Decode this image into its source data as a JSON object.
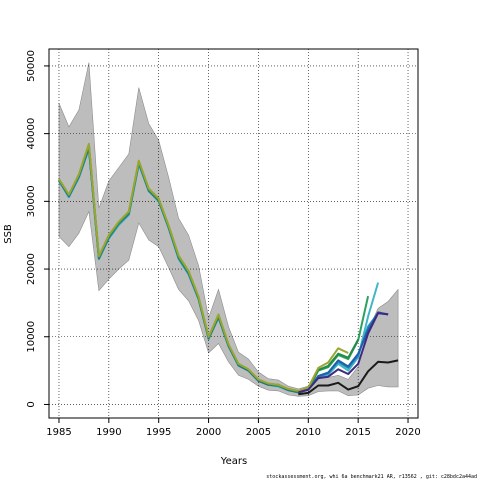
{
  "chart_data": {
    "type": "line",
    "xlabel": "Years",
    "ylabel": "SSB",
    "xlim": [
      1984,
      2021
    ],
    "ylim": [
      -2000,
      52500
    ],
    "x_ticks": [
      1985,
      1990,
      1995,
      2000,
      2005,
      2010,
      2015,
      2020
    ],
    "y_ticks": [
      0,
      10000,
      20000,
      30000,
      40000,
      50000
    ],
    "grid": true,
    "footer": "stockassessment.org, whi 6a benchmark21 AR, r13562 , git: c28bdc2a44ad",
    "band": {
      "x": [
        1985,
        1986,
        1987,
        1988,
        1989,
        1990,
        1991,
        1992,
        1993,
        1994,
        1995,
        1996,
        1997,
        1998,
        1999,
        2000,
        2001,
        2002,
        2003,
        2004,
        2005,
        2006,
        2007,
        2008,
        2009,
        2010,
        2011,
        2012,
        2013,
        2014,
        2015,
        2016,
        2017,
        2018,
        2019
      ],
      "upper": [
        44500,
        41000,
        43500,
        50500,
        29000,
        33000,
        35000,
        37000,
        46800,
        41500,
        39000,
        33500,
        27500,
        25000,
        20500,
        12800,
        17000,
        11500,
        7700,
        6700,
        4800,
        3800,
        3600,
        2700,
        2300,
        2700,
        3800,
        4000,
        4300,
        3700,
        5600,
        11000,
        14200,
        15200,
        17000
      ],
      "lower": [
        24800,
        23300,
        25300,
        28500,
        16800,
        18500,
        20000,
        21300,
        26800,
        24300,
        23300,
        20200,
        17000,
        15300,
        12400,
        7600,
        9000,
        6300,
        4300,
        3700,
        2700,
        2100,
        2000,
        1400,
        1200,
        1300,
        1900,
        2000,
        2000,
        1300,
        1400,
        2400,
        2800,
        2600,
        2600
      ]
    },
    "series": [
      {
        "color": "#41b6c4",
        "x": [
          1985,
          1986,
          1987,
          1988,
          1989,
          1990,
          1991,
          1992,
          1993,
          1994,
          1995,
          1996,
          1997,
          1998,
          1999,
          2000,
          2001,
          2002,
          2003,
          2004,
          2005,
          2006,
          2007,
          2008,
          2009,
          2010,
          2011,
          2012,
          2013,
          2014,
          2015,
          2016,
          2017
        ],
        "y": [
          33000,
          30600,
          33500,
          37700,
          21500,
          24500,
          26500,
          28000,
          35500,
          31500,
          30000,
          26000,
          21500,
          19200,
          15500,
          9700,
          12800,
          8600,
          5700,
          5000,
          3500,
          2900,
          2700,
          2100,
          1800,
          2200,
          4000,
          4400,
          6000,
          5000,
          7000,
          13000,
          18000
        ]
      },
      {
        "color": "#1d91c0",
        "x": [
          1985,
          1986,
          1987,
          1988,
          1989,
          1990,
          1991,
          1992,
          1993,
          1994,
          1995,
          1996,
          1997,
          1998,
          1999,
          2000,
          2001,
          2002,
          2003,
          2004,
          2005,
          2006,
          2007,
          2008,
          2009,
          2010,
          2011,
          2012,
          2013,
          2014,
          2015,
          2016,
          2017,
          2018
        ],
        "y": [
          33100,
          30700,
          33600,
          37900,
          21500,
          24600,
          26700,
          28100,
          35600,
          31600,
          30100,
          26100,
          21600,
          19300,
          15600,
          9700,
          12900,
          8600,
          5800,
          5000,
          3500,
          2900,
          2700,
          2100,
          1800,
          2200,
          4100,
          4600,
          6300,
          5400,
          7200,
          11500,
          13500,
          13300
        ]
      },
      {
        "color": "#225ea8",
        "x": [
          1985,
          1986,
          1987,
          1988,
          1989,
          1990,
          1991,
          1992,
          1993,
          1994,
          1995,
          1996,
          1997,
          1998,
          1999,
          2000,
          2001,
          2002,
          2003,
          2004,
          2005,
          2006,
          2007,
          2008,
          2009,
          2010,
          2011,
          2012,
          2013,
          2014,
          2015,
          2016,
          2017,
          2018
        ],
        "y": [
          33100,
          30800,
          33700,
          38000,
          21600,
          24700,
          26700,
          28200,
          35700,
          31600,
          30100,
          26100,
          21700,
          19400,
          15600,
          9800,
          12900,
          8700,
          5800,
          5000,
          3500,
          2900,
          2800,
          2100,
          1800,
          2200,
          4200,
          4700,
          6500,
          5600,
          7500,
          11000,
          13600,
          13300
        ]
      },
      {
        "color": "#2ca25f",
        "x": [
          1985,
          1986,
          1987,
          1988,
          1989,
          1990,
          1991,
          1992,
          1993,
          1994,
          1995,
          1996,
          1997,
          1998,
          1999,
          2000,
          2001,
          2002,
          2003,
          2004,
          2005,
          2006,
          2007,
          2008,
          2009,
          2010,
          2011,
          2012,
          2013,
          2014,
          2015,
          2016
        ],
        "y": [
          33200,
          30900,
          33800,
          38200,
          21700,
          24800,
          26800,
          28300,
          35800,
          31700,
          30200,
          26200,
          21800,
          19500,
          15700,
          9900,
          13000,
          8800,
          5900,
          5100,
          3600,
          3000,
          2800,
          2200,
          1900,
          2300,
          5000,
          5500,
          7300,
          6700,
          9500,
          16000
        ]
      },
      {
        "color": "#238b45",
        "x": [
          1985,
          1986,
          1987,
          1988,
          1989,
          1990,
          1991,
          1992,
          1993,
          1994,
          1995,
          1996,
          1997,
          1998,
          1999,
          2000,
          2001,
          2002,
          2003,
          2004,
          2005,
          2006,
          2007,
          2008,
          2009,
          2010,
          2011,
          2012,
          2013,
          2014,
          2015
        ],
        "y": [
          33200,
          30900,
          33900,
          38300,
          21800,
          24900,
          26900,
          28400,
          35900,
          31800,
          30300,
          26300,
          21900,
          19600,
          15800,
          9900,
          13100,
          8800,
          5900,
          5100,
          3600,
          3000,
          2900,
          2200,
          1900,
          2400,
          5100,
          5700,
          7500,
          6900,
          9600
        ]
      },
      {
        "color": "#9aa632",
        "x": [
          1985,
          1986,
          1987,
          1988,
          1989,
          1990,
          1991,
          1992,
          1993,
          1994,
          1995,
          1996,
          1997,
          1998,
          1999,
          2000,
          2001,
          2002,
          2003,
          2004,
          2005,
          2006,
          2007,
          2008,
          2009,
          2010,
          2011,
          2012,
          2013,
          2014
        ],
        "y": [
          33300,
          31000,
          34000,
          38500,
          21900,
          25000,
          27000,
          28500,
          36000,
          31900,
          30400,
          26400,
          22000,
          19700,
          15900,
          10000,
          13300,
          8900,
          6000,
          5200,
          3700,
          3100,
          2900,
          2300,
          2000,
          2500,
          5400,
          6200,
          8300,
          7600
        ]
      },
      {
        "color": "#3f2a80",
        "x": [
          2009,
          2010,
          2011,
          2012,
          2013,
          2014,
          2015,
          2016,
          2017,
          2018
        ],
        "y": [
          1800,
          2200,
          3900,
          4100,
          5200,
          4500,
          6000,
          10500,
          13500,
          13300
        ]
      },
      {
        "color": "#1a1a1a",
        "x": [
          2009,
          2010,
          2011,
          2012,
          2013,
          2014,
          2015,
          2016,
          2017,
          2018,
          2019
        ],
        "y": [
          1500,
          1700,
          2800,
          2800,
          3200,
          2200,
          2700,
          4900,
          6300,
          6200,
          6500
        ]
      }
    ]
  }
}
